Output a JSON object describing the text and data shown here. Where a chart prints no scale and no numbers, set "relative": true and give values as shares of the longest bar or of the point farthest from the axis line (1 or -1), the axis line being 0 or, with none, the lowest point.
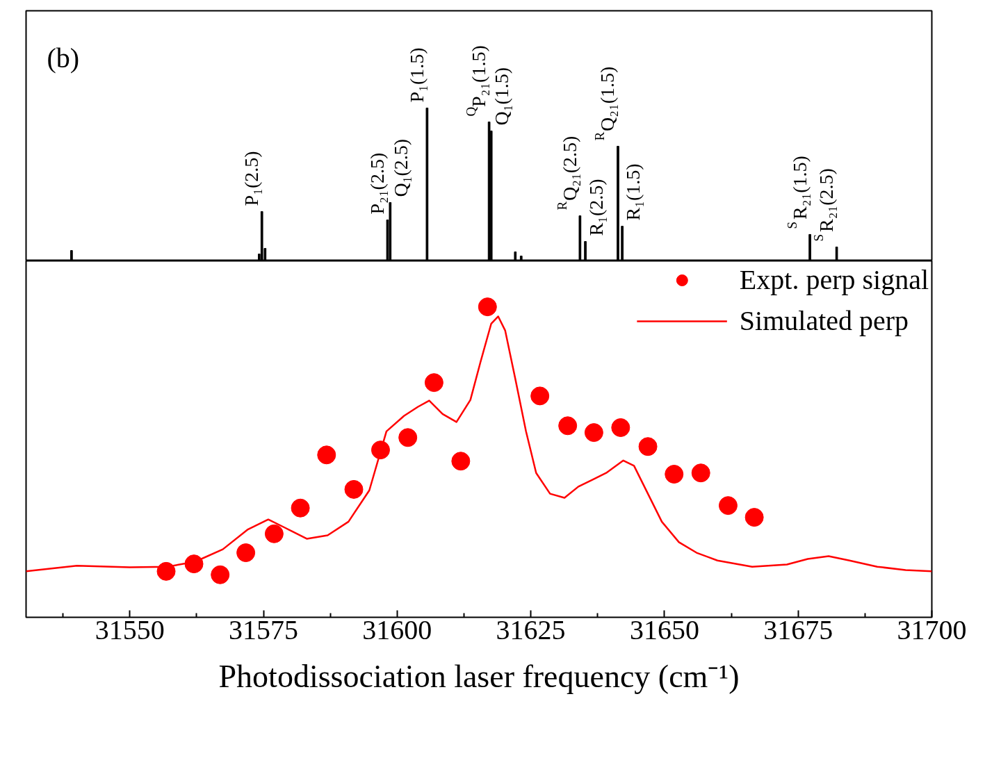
{
  "chart_data": [
    {
      "type": "bar",
      "relative": true,
      "tick_labels": false,
      "grid": false,
      "legend": false,
      "xlim": [
        31530.6,
        31700
      ],
      "x": [
        31539.1,
        31574.2,
        31574.7,
        31575.3,
        31598.2,
        31598.7,
        31605.6,
        31617.2,
        31617.6,
        31622.1,
        31623.2,
        31634.2,
        31635.2,
        31641.3,
        31642.1,
        31677.2,
        31682.2
      ],
      "series": [
        {
          "color": "#000000",
          "values": [
            0.068,
            0.045,
            0.323,
            0.082,
            0.268,
            0.382,
            1.0,
            0.909,
            0.85,
            0.059,
            0.032,
            0.295,
            0.127,
            0.75,
            0.227,
            0.173,
            0.091
          ]
        }
      ],
      "annotations": [
        "(b)",
        {
          "text": "P₁(2.5)",
          "x": 31574.7,
          "y": 0.323
        },
        {
          "text": "P₂₁(2.5)",
          "x": 31598.2,
          "y": 0.268
        },
        {
          "text": "Q₁(2.5)",
          "x": 31598.7,
          "y": 0.382
        },
        {
          "text": "P₁(1.5)",
          "x": 31605.6,
          "y": 1.0
        },
        {
          "text": "$^{Q}$P₂₁(1.5)",
          "x": 31617.2,
          "y": 0.909
        },
        {
          "text": "Q₁(1.5)",
          "x": 31617.6,
          "y": 0.85
        },
        {
          "text": "$^{R}$Q₂₁(2.5)",
          "x": 31634.2,
          "y": 0.295
        },
        {
          "text": "R₁(2.5)",
          "x": 31635.2,
          "y": 0.127
        },
        {
          "text": "$^{R}$Q₂₁(1.5)",
          "x": 31641.3,
          "y": 0.75
        },
        {
          "text": "R₁(1.5)",
          "x": 31642.1,
          "y": 0.227
        },
        {
          "text": "$^{S}$R₂₁(1.5)",
          "x": 31677.2,
          "y": 0.173
        },
        {
          "text": "$^{S}$R₂₁(2.5)",
          "x": 31682.2,
          "y": 0.091
        }
      ]
    },
    {
      "type": "line",
      "relative": true,
      "tick_labels": "x",
      "grid": false,
      "legend": "top right",
      "xlabel": "Photodissociation laser frequency (cm⁻¹)",
      "xlim": [
        31530.6,
        31700
      ],
      "xticks": [
        31550,
        31575,
        31600,
        31625,
        31650,
        31675,
        31700
      ],
      "series": [
        {
          "name": "Expt. perp signal",
          "type": "scatter",
          "marker": "circle",
          "color": "#ff0000",
          "x": [
            31556.8,
            31562.0,
            31566.9,
            31571.7,
            31577.0,
            31581.9,
            31586.8,
            31591.9,
            31596.9,
            31602.0,
            31606.9,
            31611.9,
            31616.9,
            31626.7,
            31631.9,
            31636.8,
            31641.8,
            31646.9,
            31651.8,
            31656.8,
            31661.9,
            31666.8
          ],
          "values": [
            0.148,
            0.172,
            0.137,
            0.208,
            0.269,
            0.352,
            0.523,
            0.412,
            0.539,
            0.579,
            0.756,
            0.503,
            1.0,
            0.713,
            0.617,
            0.595,
            0.611,
            0.55,
            0.461,
            0.465,
            0.36,
            0.322
          ]
        },
        {
          "name": "Simulated perp",
          "type": "line",
          "line_style": "solid",
          "color": "#ff0000",
          "x": [
            31530.6,
            31540.1,
            31550.0,
            31557.0,
            31562.2,
            31567.4,
            31572.0,
            31575.9,
            31579.2,
            31583.1,
            31587.0,
            31590.9,
            31594.8,
            31598.0,
            31601.3,
            31603.9,
            31606.0,
            31608.5,
            31611.1,
            31613.7,
            31615.6,
            31617.6,
            31618.9,
            31620.2,
            31622.1,
            31624.1,
            31626.0,
            31628.6,
            31631.3,
            31633.9,
            31636.5,
            31639.1,
            31642.3,
            31644.3,
            31646.9,
            31649.5,
            31652.7,
            31656.0,
            31659.9,
            31666.4,
            31672.9,
            31676.8,
            31680.7,
            31684.6,
            31689.8,
            31695.1,
            31700.0
          ],
          "values": [
            0.148,
            0.166,
            0.161,
            0.163,
            0.179,
            0.219,
            0.282,
            0.315,
            0.287,
            0.253,
            0.264,
            0.308,
            0.409,
            0.599,
            0.649,
            0.678,
            0.698,
            0.655,
            0.629,
            0.7,
            0.823,
            0.946,
            0.969,
            0.924,
            0.768,
            0.599,
            0.465,
            0.398,
            0.385,
            0.421,
            0.443,
            0.465,
            0.505,
            0.488,
            0.398,
            0.308,
            0.242,
            0.208,
            0.183,
            0.163,
            0.17,
            0.188,
            0.197,
            0.183,
            0.163,
            0.152,
            0.148
          ]
        }
      ]
    }
  ]
}
